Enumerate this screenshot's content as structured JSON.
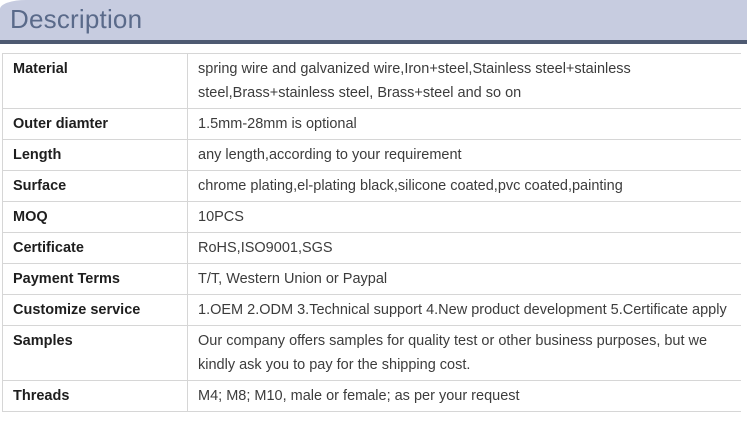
{
  "header": {
    "title": "Description"
  },
  "colors": {
    "header_bg": "#c7cce0",
    "header_text": "#5a6a8a",
    "header_underline": "#4e5a72",
    "table_border": "#d6d6d6",
    "label_text": "#1e1e1e",
    "value_text": "#3c3c3c"
  },
  "table": {
    "rows": [
      {
        "label": "Material",
        "value": "spring wire and galvanized wire,Iron+steel,Stainless steel+stainless steel,Brass+stainless steel, Brass+steel and so on"
      },
      {
        "label": "Outer diamter",
        "value": "1.5mm-28mm is optional"
      },
      {
        "label": "Length",
        "value": "any length,according to your requirement"
      },
      {
        "label": "Surface",
        "value": "chrome plating,el-plating black,silicone coated,pvc coated,painting"
      },
      {
        "label": "MOQ",
        "value": "10PCS"
      },
      {
        "label": "Certificate",
        "value": "RoHS,ISO9001,SGS"
      },
      {
        "label": "Payment Terms",
        "value": "T/T, Western Union or Paypal"
      },
      {
        "label": "Customize service",
        "value": "1.OEM 2.ODM 3.Technical support 4.New product development 5.Certificate apply"
      },
      {
        "label": "Samples",
        "value": "Our company offers samples for quality test or other business purposes, but we kindly ask you to pay for the shipping cost."
      },
      {
        "label": "Threads",
        "value": "M4; M8; M10, male or female; as per your request"
      }
    ]
  }
}
